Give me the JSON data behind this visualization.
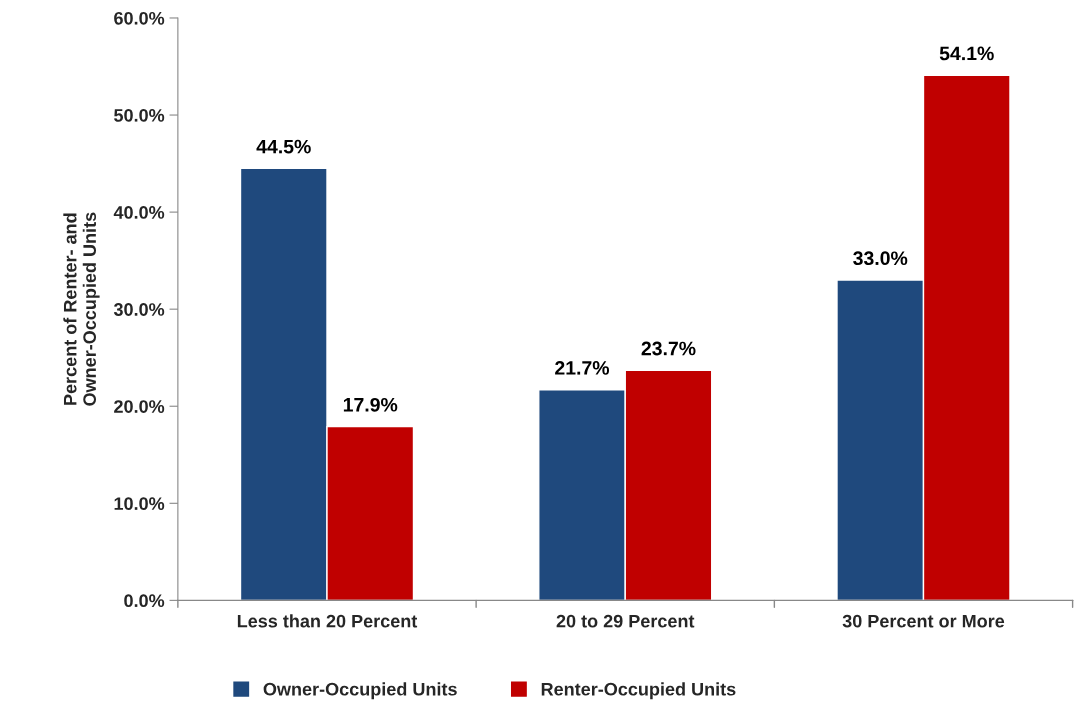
{
  "chart_data": {
    "type": "bar",
    "ylabel": "Percent of Renter- and\nOwner-Occupied Units",
    "categories": [
      "Less than 20 Percent",
      "20 to 29 Percent",
      "30 Percent or More"
    ],
    "series": [
      {
        "name": "Owner-Occupied Units",
        "color": "#1f497d",
        "values": [
          44.5,
          21.7,
          33.0
        ],
        "value_labels": [
          "44.5%",
          "21.7%",
          "33.0%"
        ]
      },
      {
        "name": "Renter-Occupied Units",
        "color": "#c00000",
        "values": [
          17.9,
          23.7,
          54.1
        ],
        "value_labels": [
          "17.9%",
          "23.7%",
          "54.1%"
        ]
      }
    ],
    "ylim": [
      0,
      60
    ],
    "yticks": [
      {
        "value": 0,
        "label": "0.0%"
      },
      {
        "value": 10,
        "label": "10.0%"
      },
      {
        "value": 20,
        "label": "20.0%"
      },
      {
        "value": 30,
        "label": "30.0%"
      },
      {
        "value": 40,
        "label": "40.0%"
      },
      {
        "value": 50,
        "label": "50.0%"
      },
      {
        "value": 60,
        "label": "60.0%"
      }
    ],
    "grid": false,
    "legend": "bottom"
  }
}
